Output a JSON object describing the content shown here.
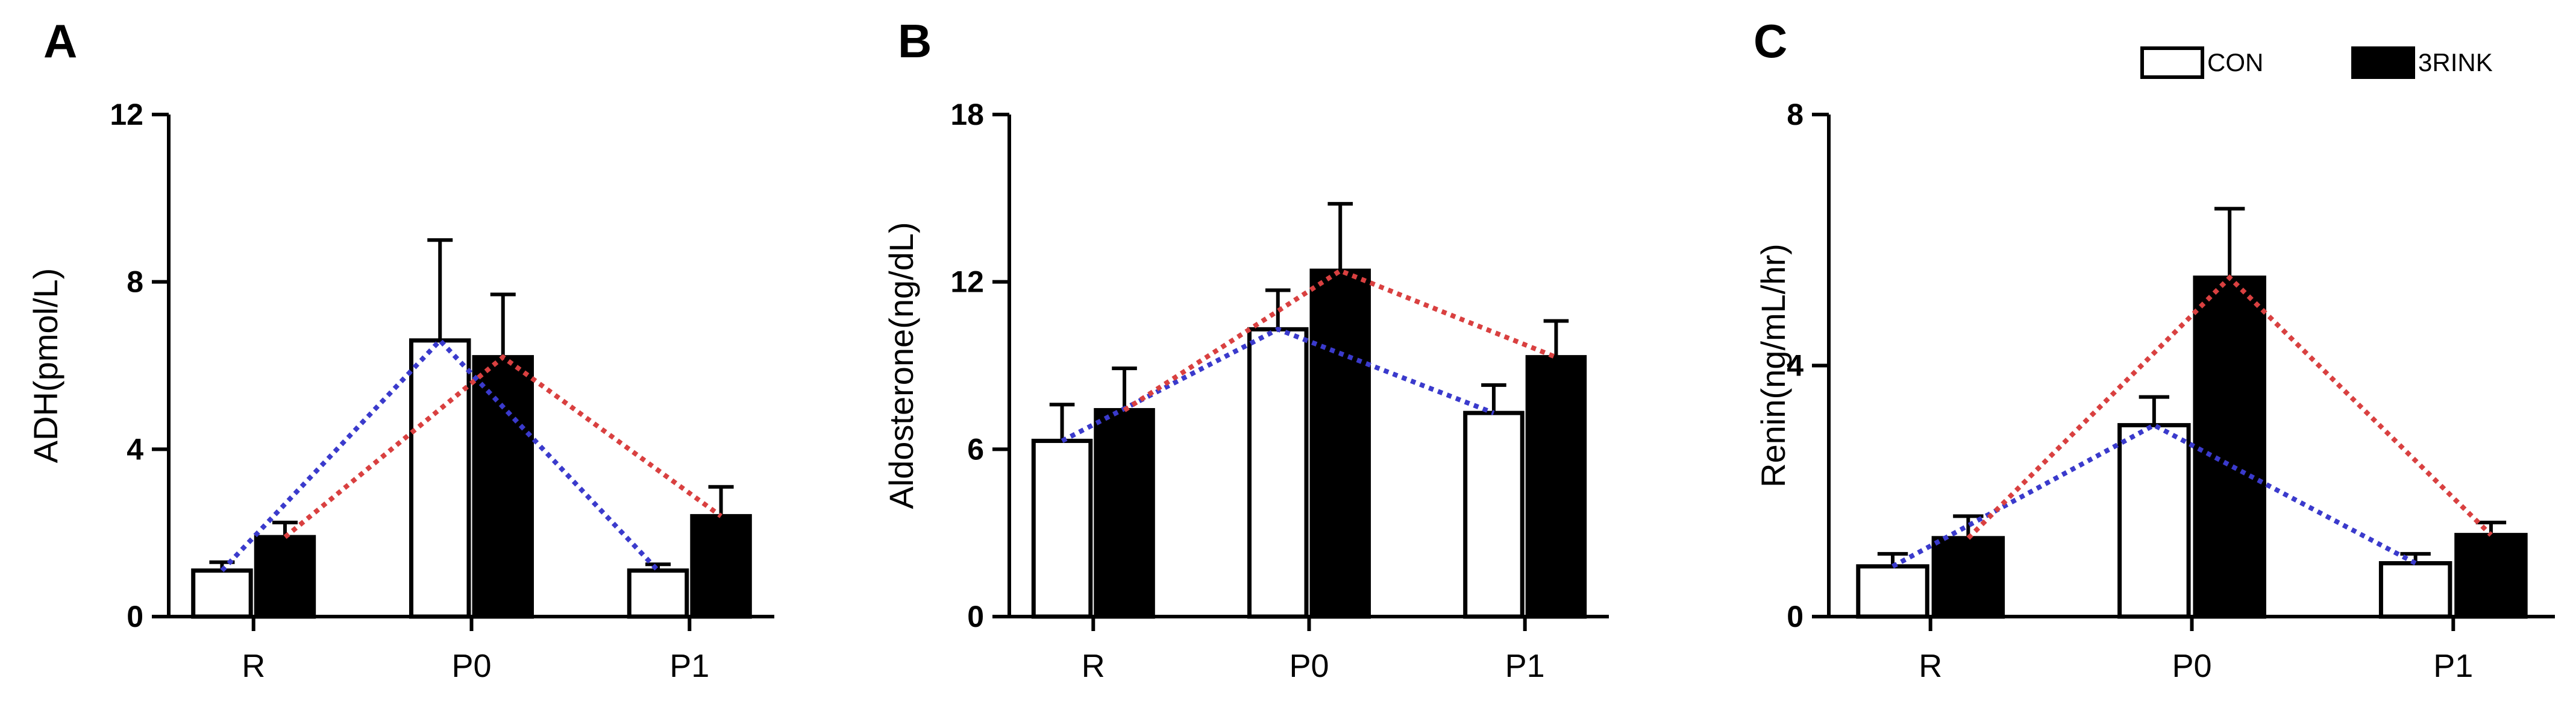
{
  "legend": [
    {
      "label": "CON",
      "color": "#ffffff"
    },
    {
      "label": "3RINK",
      "color": "#000000"
    }
  ],
  "colors": {
    "con_trend": "#3a3acc",
    "treat_trend": "#d94040",
    "bar_edge": "#000000"
  },
  "chart_data": [
    {
      "type": "bar",
      "panel": "A",
      "ylabel": "ADH(pmol/L)",
      "categories": [
        "R",
        "P0",
        "P1"
      ],
      "ylim": [
        0,
        12
      ],
      "yticks": [
        0,
        4,
        8,
        12
      ],
      "series": [
        {
          "name": "CON",
          "values": [
            1.1,
            6.6,
            1.1
          ],
          "errors": [
            0.2,
            2.4,
            0.15
          ]
        },
        {
          "name": "3RINK",
          "values": [
            1.9,
            6.2,
            2.4
          ],
          "errors": [
            0.35,
            1.5,
            0.7
          ]
        }
      ]
    },
    {
      "type": "bar",
      "panel": "B",
      "ylabel": "Aldosterone(ng/dL)",
      "categories": [
        "R",
        "P0",
        "P1"
      ],
      "ylim": [
        0,
        18
      ],
      "yticks": [
        0,
        6,
        12,
        18
      ],
      "series": [
        {
          "name": "CON",
          "values": [
            6.3,
            10.3,
            7.3
          ],
          "errors": [
            1.3,
            1.4,
            1.0
          ]
        },
        {
          "name": "3RINK",
          "values": [
            7.4,
            12.4,
            9.3
          ],
          "errors": [
            1.5,
            2.4,
            1.3
          ]
        }
      ]
    },
    {
      "type": "bar",
      "panel": "C",
      "ylabel": "Renin(ng/mL/hr)",
      "categories": [
        "R",
        "P0",
        "P1"
      ],
      "ylim": [
        0,
        8
      ],
      "yticks": [
        0,
        4,
        8
      ],
      "series": [
        {
          "name": "CON",
          "values": [
            0.8,
            3.05,
            0.85
          ],
          "errors": [
            0.2,
            0.45,
            0.15
          ]
        },
        {
          "name": "3RINK",
          "values": [
            1.25,
            5.4,
            1.3
          ],
          "errors": [
            0.35,
            1.1,
            0.2
          ]
        }
      ]
    }
  ]
}
